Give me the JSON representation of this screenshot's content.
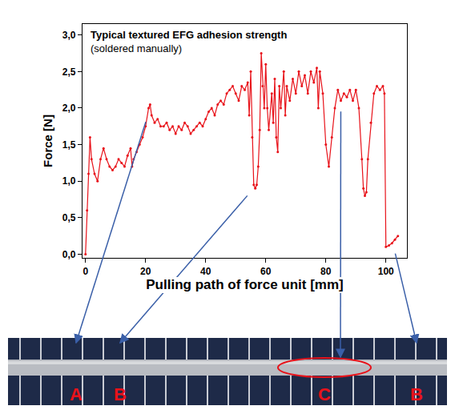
{
  "chart_data": {
    "type": "line",
    "title": "Typical textured EFG adhesion strength",
    "subtitle": "(soldered manually)",
    "x_label": "Pulling path of force unit [mm]",
    "y_label": "Force [N]",
    "color": "#e8121a",
    "marker": "circle",
    "grid": false,
    "xlim": [
      -1,
      107
    ],
    "ylim": [
      -0.05,
      3.15
    ],
    "xticks": [
      0,
      20,
      40,
      60,
      80,
      100
    ],
    "yticks": [
      {
        "value": 0,
        "label": "0,0"
      },
      {
        "value": 0.5,
        "label": "0,5"
      },
      {
        "value": 1,
        "label": "1,0"
      },
      {
        "value": 1.5,
        "label": "1,5"
      },
      {
        "value": 2,
        "label": "2,0"
      },
      {
        "value": 2.5,
        "label": "2,5"
      },
      {
        "value": 3,
        "label": "3,0"
      }
    ],
    "x": [
      0,
      0.5,
      1,
      1.5,
      2,
      3,
      4,
      5,
      6,
      7,
      8,
      9,
      10,
      11,
      12,
      13,
      14,
      15,
      15.5,
      16,
      17,
      18,
      19,
      20,
      21,
      21.5,
      22,
      23,
      24,
      25,
      26,
      27,
      28,
      29,
      30,
      31,
      32,
      33,
      34,
      35,
      36,
      37,
      38,
      39,
      40,
      41,
      42,
      43,
      44,
      45,
      46,
      47,
      48,
      49,
      50,
      51,
      52,
      53,
      54,
      54.5,
      55,
      55.5,
      56,
      56.5,
      57,
      57.5,
      58,
      58.5,
      59,
      59.5,
      60,
      60.5,
      61,
      62,
      62.5,
      63,
      63.5,
      64,
      64.5,
      65,
      66,
      66.5,
      67,
      68,
      69,
      70,
      71,
      72,
      73,
      74,
      75,
      76,
      77,
      77.5,
      78,
      79,
      80,
      81,
      82,
      83,
      84,
      85,
      86,
      87,
      88,
      89,
      90,
      91,
      92,
      92.5,
      93,
      93.5,
      94,
      95,
      96,
      97,
      98,
      99,
      99.5,
      100,
      101,
      102,
      103,
      104
    ],
    "values": [
      0,
      0.6,
      1.1,
      1.6,
      1.3,
      1.1,
      1.0,
      1.3,
      1.45,
      1.3,
      1.2,
      1.15,
      1.2,
      1.3,
      1.25,
      1.2,
      1.35,
      1.45,
      1.2,
      1.3,
      1.4,
      1.5,
      1.6,
      1.75,
      2.0,
      2.05,
      1.9,
      1.8,
      1.85,
      1.75,
      1.75,
      1.8,
      1.7,
      1.75,
      1.65,
      1.75,
      1.7,
      1.8,
      1.75,
      1.65,
      1.7,
      1.75,
      1.8,
      1.75,
      1.85,
      1.95,
      2.0,
      1.9,
      2.05,
      2.1,
      2.05,
      2.2,
      2.25,
      2.3,
      2.2,
      2.1,
      2.3,
      2.25,
      2.35,
      1.9,
      2.5,
      1.6,
      0.95,
      0.9,
      0.95,
      1.2,
      1.7,
      2.75,
      2.3,
      2.0,
      2.6,
      2.0,
      1.7,
      2.2,
      1.8,
      2.4,
      1.6,
      1.4,
      2.3,
      2.0,
      2.5,
      1.9,
      2.3,
      2.1,
      2.4,
      2.2,
      2.5,
      2.3,
      2.45,
      2.2,
      2.5,
      2.35,
      2.55,
      2.0,
      2.5,
      2.2,
      1.5,
      1.2,
      1.6,
      2.0,
      2.25,
      2.1,
      2.2,
      2.15,
      2.25,
      2.1,
      2.25,
      2.0,
      1.3,
      0.9,
      0.8,
      0.85,
      1.3,
      1.8,
      2.2,
      2.3,
      2.25,
      2.3,
      2.2,
      0.1,
      0.12,
      0.15,
      0.2,
      0.25
    ],
    "highlights": [
      {
        "x": 21.5,
        "y": 2.0,
        "label": "A"
      },
      {
        "x": 57,
        "y": 0.95,
        "label": "B"
      },
      {
        "x": 85,
        "y": 2.15,
        "label": "C"
      },
      {
        "x": 102,
        "y": 0.2,
        "label": "B"
      }
    ]
  }
}
